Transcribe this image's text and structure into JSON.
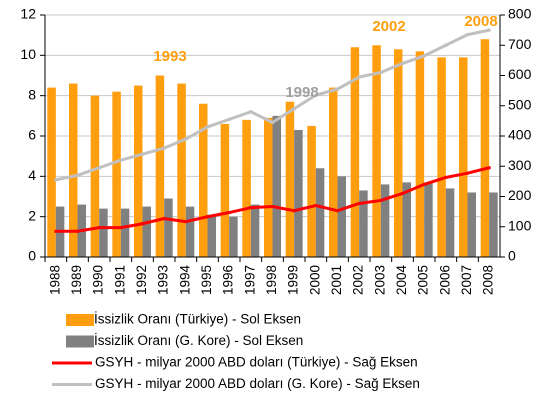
{
  "chart_data": {
    "type": "bar_line",
    "categories": [
      "1988",
      "1989",
      "1990",
      "1991",
      "1992",
      "1993",
      "1994",
      "1995",
      "1996",
      "1997",
      "1998",
      "1999",
      "2000",
      "2001",
      "2002",
      "2003",
      "2004",
      "2005",
      "2006",
      "2007",
      "2008"
    ],
    "series": [
      {
        "name": "İssizlik Oranı (Türkiye) - Sol Eksen",
        "color": "#ff9f0f",
        "kind": "bar",
        "axis": "y",
        "values": [
          8.4,
          8.6,
          8.0,
          8.2,
          8.5,
          9.0,
          8.6,
          7.6,
          6.6,
          6.8,
          6.9,
          7.7,
          6.5,
          8.4,
          10.4,
          10.5,
          10.3,
          10.2,
          9.9,
          9.9,
          10.8
        ]
      },
      {
        "name": "İssizlik Oranı (G. Kore) - Sol Eksen",
        "color": "#808080",
        "kind": "bar",
        "axis": "y",
        "values": [
          2.5,
          2.6,
          2.4,
          2.4,
          2.5,
          2.9,
          2.5,
          2.1,
          2.0,
          2.6,
          7.0,
          6.3,
          4.4,
          4.0,
          3.3,
          3.6,
          3.7,
          3.7,
          3.4,
          3.2,
          3.2
        ]
      },
      {
        "name": "GSYH - milyar 2000 ABD doları (Türkiye) - Sağ Eksen",
        "color": "#ff0000",
        "kind": "line",
        "axis": "y2",
        "values": [
          85,
          85,
          97,
          97,
          110,
          127,
          117,
          133,
          147,
          163,
          167,
          153,
          170,
          153,
          177,
          187,
          210,
          240,
          263,
          277,
          295
        ]
      },
      {
        "name": "GSYH - milyar 2000 ABD doları (G. Kore) - Sağ Eksen",
        "color": "#c0c0c0",
        "kind": "line",
        "axis": "y2",
        "values": [
          255,
          270,
          295,
          320,
          340,
          360,
          390,
          430,
          455,
          480,
          445,
          490,
          535,
          555,
          595,
          610,
          640,
          665,
          700,
          735,
          750
        ]
      }
    ],
    "ylim": [
      0,
      12
    ],
    "yticks": [
      0,
      2,
      4,
      6,
      8,
      10,
      12
    ],
    "y2lim": [
      0,
      800
    ],
    "y2ticks": [
      0,
      100,
      200,
      300,
      400,
      500,
      600,
      700,
      800
    ],
    "grid": true,
    "annotations": [
      {
        "text": "1993",
        "color": "#ff9f0f"
      },
      {
        "text": "1998",
        "color": "#a0a0a0"
      },
      {
        "text": "2002",
        "color": "#ff9f0f"
      },
      {
        "text": "2008",
        "color": "#ff9f0f"
      }
    ]
  }
}
